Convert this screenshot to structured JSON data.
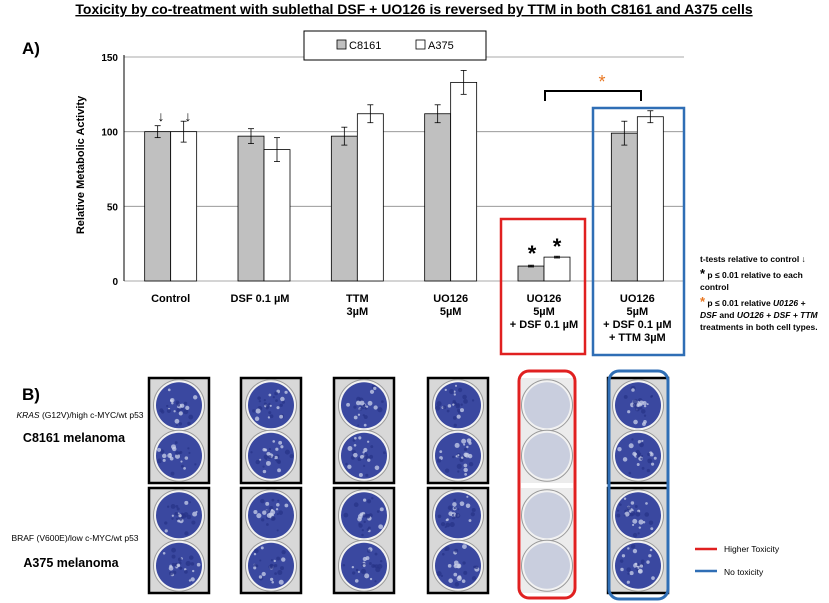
{
  "title": "Toxicity by co-treatment with sublethal DSF + UO126 is reversed by TTM in both  C8161 and A375 cells",
  "panel_a_label": "A)",
  "panel_b_label": "B)",
  "chart_data": {
    "type": "bar",
    "ylabel": "Relative Metabolic Activity",
    "ylim": [
      0,
      150
    ],
    "yticks": [
      "0",
      "50",
      "100",
      "150"
    ],
    "categories": [
      [
        "Control"
      ],
      [
        "DSF  0.1 µM"
      ],
      [
        "TTM",
        "3µM"
      ],
      [
        "UO126",
        "5µM"
      ],
      [
        "UO126",
        "5µM",
        "+ DSF 0.1 µM"
      ],
      [
        "UO126",
        "5µM",
        "+ DSF  0.1 µM",
        "+ TTM 3µM"
      ]
    ],
    "series": [
      {
        "name": "C8161",
        "color": "#c0c0c0",
        "values": [
          100,
          97,
          97,
          112,
          10,
          99
        ],
        "errors": [
          4,
          5,
          6,
          6,
          0.6,
          8
        ]
      },
      {
        "name": "A375",
        "color": "#ffffff",
        "values": [
          100,
          88,
          112,
          133,
          16,
          110
        ],
        "errors": [
          7,
          8,
          6,
          8,
          0.6,
          4
        ]
      }
    ],
    "legend_position": "top-center",
    "grid": true
  },
  "annotations": {
    "star": "*",
    "orange_star": "*",
    "control_arrow": "↓"
  },
  "notes": {
    "line1": "t-tests relative to control ↓",
    "line2a": "*",
    "line2b": " p ≤ 0.01 relative to each",
    "line3": "control",
    "line4a": "*",
    "line4b": " p ≤ 0.01 relative ",
    "line4c": "U0126 +",
    "line5a": "DSF",
    "line5b": " and ",
    "line5c": "UO126 + DSF + TTM",
    "line6": "treatments in both cell types."
  },
  "cell_lines": [
    {
      "genotype_italic": "KRAS ",
      "genotype_rest": "(G12V)/high c-MYC/wt p53",
      "name": "C8161 melanoma"
    },
    {
      "genotype_italic": "",
      "genotype_rest": "BRAF (V600E)/low c-MYC/wt p53",
      "name": "A375 melanoma"
    }
  ],
  "legend_b": [
    {
      "label": "Higher Toxicity",
      "color": "#e02020"
    },
    {
      "label": "No toxicity",
      "color": "#2f6eb5"
    }
  ],
  "colors": {
    "red_box": "#e02020",
    "blue_box": "#2f6eb5",
    "orange_star": "#e87722",
    "well_stain": "#3a48a0",
    "well_pale": "#c9cede"
  }
}
